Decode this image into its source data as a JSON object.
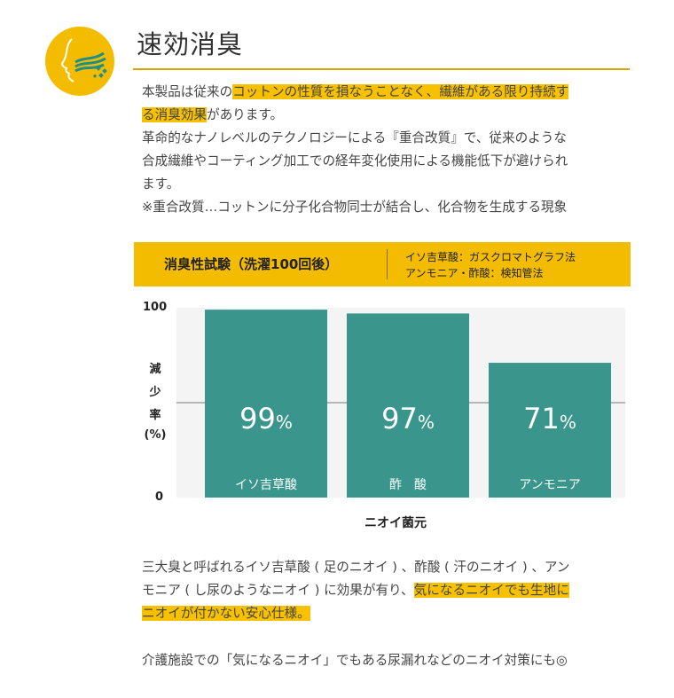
{
  "header": {
    "title": "速効消臭",
    "icon": "face-smell-icon",
    "accent_color": "#f4bc00"
  },
  "intro": {
    "line1_pre": "本製品は従来の",
    "line1_hl": "コットンの性質を損なうことなく、繊維がある限り持続す",
    "line2_hl": "る消臭効果",
    "line2_post": "があります。",
    "line3": "革命的なナノレベルのテクノロジーによる『重合改質』で、従来のような",
    "line4": "合成繊維やコーティング加工での経年変化使用による機能低下が避けられ",
    "line5": "ます。",
    "line6": "※重合改質…コットンに分子化合物同士が結合し、化合物を生成する現象"
  },
  "test_band": {
    "title": "消臭性試験（洗濯100回後）",
    "note1": "イソ吉草酸：ガスクロマトグラフ法",
    "note2": "アンモニア・酢酸：検知管法"
  },
  "chart_data": {
    "type": "bar",
    "categories": [
      "イソ吉草酸",
      "酢　酸",
      "アンモニア"
    ],
    "values": [
      99,
      97,
      71
    ],
    "value_labels": [
      "99",
      "97",
      "71"
    ],
    "value_unit": "%",
    "xlabel": "ニオイ菌元",
    "ylabel_chars": [
      "減",
      "少",
      "率",
      "(%)"
    ],
    "ylim": [
      0,
      100
    ],
    "ytick_labels": [
      "100",
      "0"
    ],
    "gridline_at": 50,
    "bar_color": "#3a968d",
    "grid": true
  },
  "summary": {
    "line1": "三大臭と呼ばれるイソ吉草酸 ( 足のニオイ ) 、酢酸 ( 汗のニオイ ) 、アン",
    "line2_pre": "モニア ( し尿のようなニオイ ) に効果が有り、",
    "line2_hl": "気になるニオイでも生地に",
    "line3_hl": "ニオイが付かない安心仕様。",
    "line4": "介護施設での「気になるニオイ」でもある尿漏れなどのニオイ対策にも◎"
  }
}
